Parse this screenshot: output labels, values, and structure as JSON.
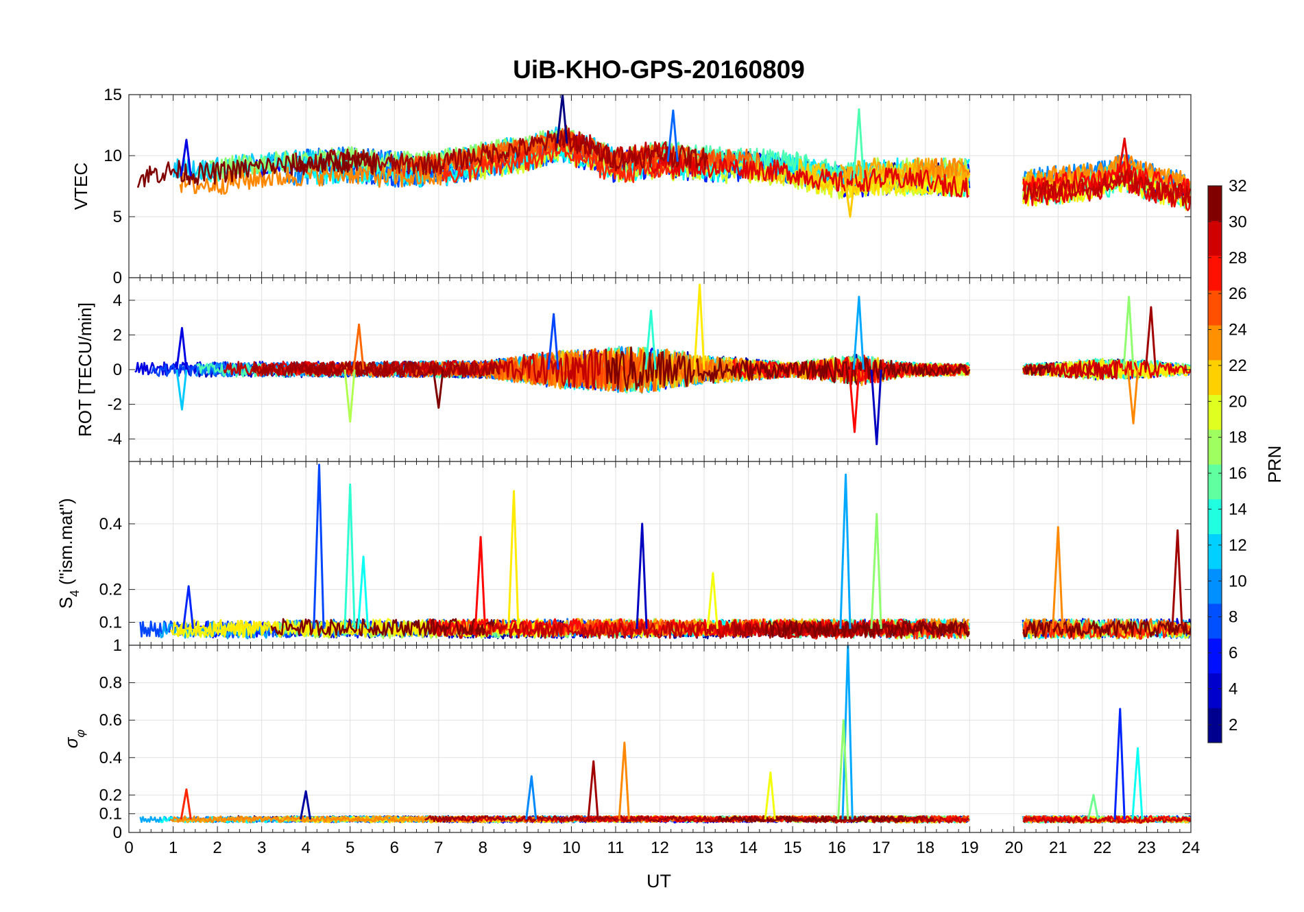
{
  "chart_data": {
    "type": "line",
    "title": "UiB-KHO-GPS-20160809",
    "xlabel": "UT",
    "x_ticks": [
      "0",
      "1",
      "2",
      "3",
      "4",
      "5",
      "6",
      "7",
      "8",
      "9",
      "10",
      "11",
      "12",
      "13",
      "14",
      "15",
      "16",
      "17",
      "18",
      "19",
      "20",
      "21",
      "22",
      "23",
      "24"
    ],
    "xlim": [
      0,
      24
    ],
    "gap_ut": [
      19.0,
      20.2
    ],
    "panels": [
      {
        "name": "vtec",
        "ylabel": "VTEC",
        "ylim": [
          0,
          15
        ],
        "yticks": [
          0,
          5,
          10,
          15
        ],
        "baseline": [
          [
            0,
            7.5
          ],
          [
            0.5,
            8.2
          ],
          [
            1,
            8.5
          ],
          [
            1.5,
            8.2
          ],
          [
            2,
            8.3
          ],
          [
            3,
            8.8
          ],
          [
            4,
            9.0
          ],
          [
            5,
            9.2
          ],
          [
            6,
            8.8
          ],
          [
            7,
            8.9
          ],
          [
            8,
            9.6
          ],
          [
            9,
            10.2
          ],
          [
            9.8,
            11.0
          ],
          [
            10.5,
            10.0
          ],
          [
            11,
            9.2
          ],
          [
            12,
            9.6
          ],
          [
            13,
            9.3
          ],
          [
            14,
            9.2
          ],
          [
            15,
            8.8
          ],
          [
            16,
            8.0
          ],
          [
            17,
            8.3
          ],
          [
            18,
            8.3
          ],
          [
            19,
            8.2
          ],
          [
            20.2,
            7.4
          ],
          [
            21,
            7.6
          ],
          [
            22,
            8.0
          ],
          [
            22.5,
            8.6
          ],
          [
            23,
            7.9
          ],
          [
            24,
            7.0
          ]
        ],
        "noise": 0.9,
        "spikes": [
          [
            9.8,
            15.0
          ],
          [
            12.3,
            13.7
          ],
          [
            16.5,
            13.8
          ],
          [
            16.3,
            5.0
          ],
          [
            22.5,
            11.4
          ],
          [
            1.3,
            11.3
          ]
        ]
      },
      {
        "name": "rot",
        "ylabel": "ROT [TECU/min]",
        "ylim": [
          -5.3,
          5.3
        ],
        "yticks": [
          -4,
          -2,
          0,
          2,
          4
        ],
        "baseline": [
          [
            0,
            0
          ],
          [
            24,
            0
          ]
        ],
        "noise": 0.35,
        "noise_profile": [
          [
            0,
            0.35
          ],
          [
            8,
            0.45
          ],
          [
            9.5,
            1.0
          ],
          [
            11.5,
            1.4
          ],
          [
            13,
            0.8
          ],
          [
            15,
            0.4
          ],
          [
            16.5,
            0.9
          ],
          [
            17.5,
            0.4
          ],
          [
            19,
            0.3
          ],
          [
            20.2,
            0.25
          ],
          [
            22,
            0.6
          ],
          [
            23,
            0.5
          ],
          [
            24,
            0.3
          ]
        ],
        "spikes": [
          [
            1.2,
            2.4
          ],
          [
            1.2,
            -2.3
          ],
          [
            5.0,
            -3.0
          ],
          [
            5.2,
            2.6
          ],
          [
            7.0,
            -2.2
          ],
          [
            9.6,
            3.2
          ],
          [
            11.8,
            3.4
          ],
          [
            12.9,
            4.9
          ],
          [
            16.4,
            -3.6
          ],
          [
            16.9,
            -4.3
          ],
          [
            16.5,
            4.2
          ],
          [
            22.6,
            4.2
          ],
          [
            22.7,
            -3.1
          ],
          [
            23.1,
            3.6
          ]
        ]
      },
      {
        "name": "s4",
        "ylabel": "S4 (\"ism.mat\")",
        "ylim": [
          0.03,
          0.59
        ],
        "yticks": [
          0.1,
          0.2,
          0.4
        ],
        "baseline": [
          [
            0,
            0.08
          ],
          [
            24,
            0.08
          ]
        ],
        "noise": 0.025,
        "spikes": [
          [
            4.3,
            0.58
          ],
          [
            5.0,
            0.52
          ],
          [
            8.7,
            0.5
          ],
          [
            7.95,
            0.36
          ],
          [
            11.6,
            0.4
          ],
          [
            16.2,
            0.55
          ],
          [
            16.9,
            0.43
          ],
          [
            21.0,
            0.39
          ],
          [
            23.7,
            0.38
          ],
          [
            1.35,
            0.21
          ],
          [
            5.3,
            0.3
          ],
          [
            13.2,
            0.25
          ]
        ]
      },
      {
        "name": "sigma_phi",
        "ylabel": "σ_φ",
        "ylim": [
          0,
          1
        ],
        "yticks": [
          0,
          0.1,
          0.2,
          0.4,
          0.6,
          0.8,
          1
        ],
        "baseline": [
          [
            0,
            0.07
          ],
          [
            24,
            0.07
          ]
        ],
        "noise": 0.015,
        "spikes": [
          [
            16.25,
            1.0
          ],
          [
            16.15,
            0.6
          ],
          [
            11.2,
            0.48
          ],
          [
            10.5,
            0.38
          ],
          [
            22.4,
            0.66
          ],
          [
            22.8,
            0.45
          ],
          [
            14.5,
            0.32
          ],
          [
            1.3,
            0.23
          ],
          [
            4.0,
            0.22
          ],
          [
            9.1,
            0.3
          ],
          [
            21.8,
            0.2
          ]
        ]
      }
    ],
    "colorbar": {
      "label": "PRN",
      "range": [
        1,
        32
      ],
      "ticks": [
        "2",
        "4",
        "6",
        "8",
        "10",
        "12",
        "14",
        "16",
        "18",
        "20",
        "22",
        "24",
        "26",
        "28",
        "30",
        "32"
      ],
      "colormap": "jet",
      "colors": [
        "#00008f",
        "#0000cc",
        "#0010ff",
        "#0050ff",
        "#0090ff",
        "#00d0ff",
        "#20ffdf",
        "#60ff9f",
        "#a0ff60",
        "#dfff20",
        "#ffd000",
        "#ff9000",
        "#ff5000",
        "#ff1000",
        "#d00000",
        "#800000"
      ]
    },
    "grid": true,
    "series_count": 32
  }
}
